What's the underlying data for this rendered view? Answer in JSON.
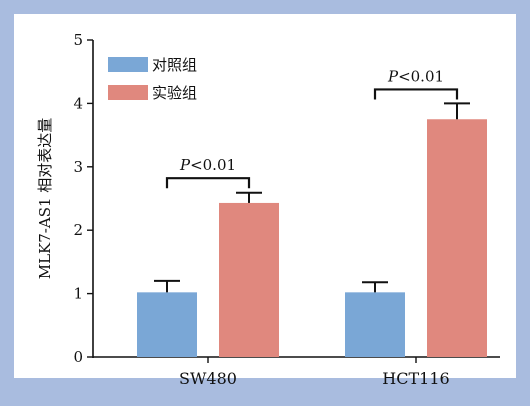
{
  "chart_data": {
    "type": "bar",
    "title": "",
    "xlabel": "",
    "ylabel": "MLK7-AS1 相对表达量",
    "ylim": [
      0,
      5
    ],
    "yticks": [
      "0",
      "1",
      "2",
      "3",
      "4",
      "5"
    ],
    "categories": [
      "SW480",
      "HCT116"
    ],
    "series": [
      {
        "name": "对照组",
        "values": [
          1.02,
          1.02
        ],
        "errors": [
          0.18,
          0.16
        ],
        "color": "#7aa7d6"
      },
      {
        "name": "实验组",
        "values": [
          2.43,
          3.75
        ],
        "errors": [
          0.16,
          0.25
        ],
        "color": "#e0887e"
      }
    ],
    "significance": [
      {
        "category_index": 0,
        "label_italic": "P",
        "label_rest": "<0.01",
        "height": 2.82
      },
      {
        "category_index": 1,
        "label_italic": "P",
        "label_rest": "<0.01",
        "height": 4.22
      }
    ],
    "legend_position": "top-left",
    "grid": false
  }
}
